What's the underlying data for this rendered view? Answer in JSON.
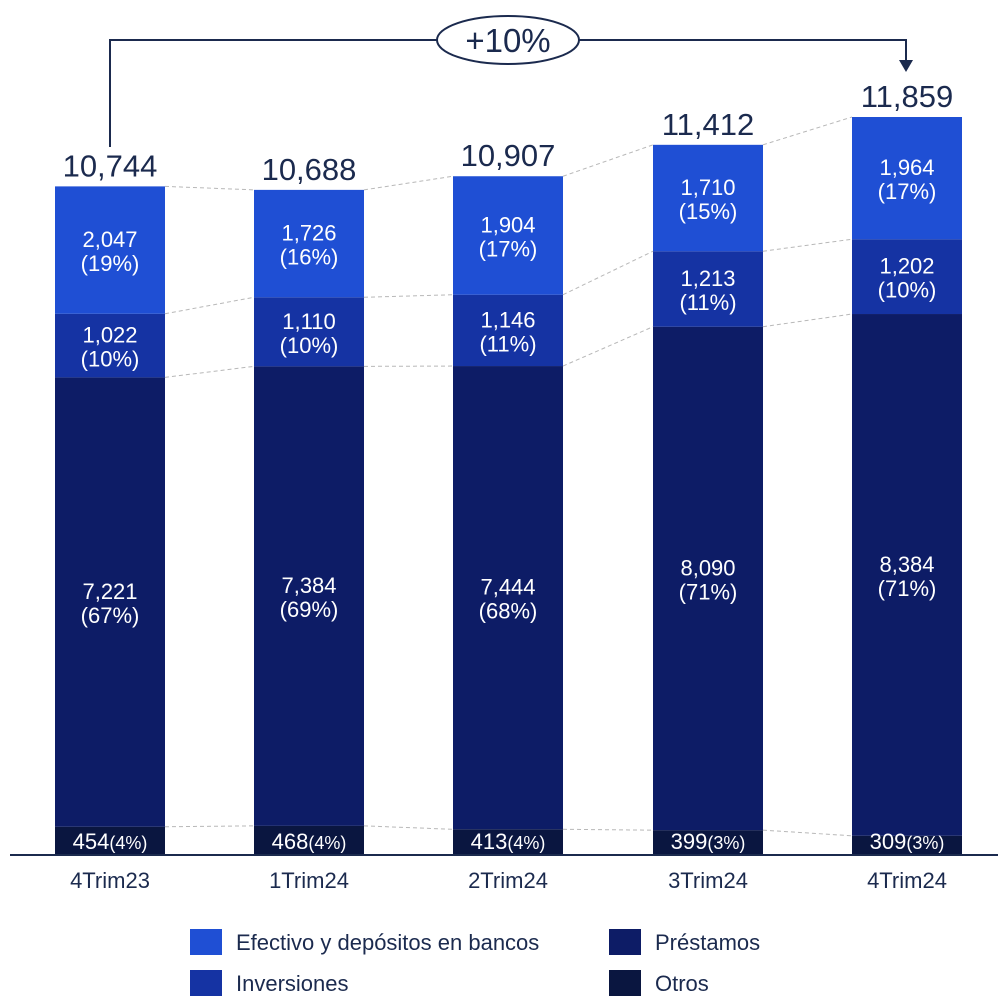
{
  "chart_data": {
    "type": "bar",
    "stacked": true,
    "categories": [
      "4Trim23",
      "1Trim24",
      "2Trim24",
      "3Trim24",
      "4Trim24"
    ],
    "totals": [
      "10,744",
      "10,688",
      "10,907",
      "11,412",
      "11,859"
    ],
    "total_values": [
      10744,
      10688,
      10907,
      11412,
      11859
    ],
    "growth_label": "+10%",
    "series": [
      {
        "name": "Otros",
        "color": "#0a1640",
        "values": [
          454,
          468,
          413,
          399,
          309
        ],
        "value_labels": [
          "454",
          "468",
          "413",
          "399",
          "309"
        ],
        "pct_labels": [
          "(4%)",
          "(4%)",
          "(4%)",
          "(3%)",
          "(3%)"
        ]
      },
      {
        "name": "Préstamos",
        "color": "#0d1c66",
        "values": [
          7221,
          7384,
          7444,
          8090,
          8384
        ],
        "value_labels": [
          "7,221",
          "7,384",
          "7,444",
          "8,090",
          "8,384"
        ],
        "pct_labels": [
          "(67%)",
          "(69%)",
          "(68%)",
          "(71%)",
          "(71%)"
        ]
      },
      {
        "name": "Inversiones",
        "color": "#1533a3",
        "values": [
          1022,
          1110,
          1146,
          1213,
          1202
        ],
        "value_labels": [
          "1,022",
          "1,110",
          "1,146",
          "1,213",
          "1,202"
        ],
        "pct_labels": [
          "(10%)",
          "(10%)",
          "(11%)",
          "(11%)",
          "(10%)"
        ]
      },
      {
        "name": "Efectivo y depósitos en bancos",
        "color": "#1f4fd4",
        "values": [
          2047,
          1726,
          1904,
          1710,
          1964
        ],
        "value_labels": [
          "2,047",
          "1,726",
          "1,904",
          "1,710",
          "1,964"
        ],
        "pct_labels": [
          "(19%)",
          "(16%)",
          "(17%)",
          "(15%)",
          "(17%)"
        ]
      }
    ],
    "legend": {
      "placement": "bottom",
      "items": [
        "Efectivo y depósitos en bancos",
        "Préstamos",
        "Inversiones",
        "Otros"
      ],
      "colors": [
        "#1f4fd4",
        "#0d1c66",
        "#1533a3",
        "#0a1640"
      ]
    },
    "axis_color": "#1b2a4e",
    "text_color": "#1b2a4e"
  }
}
